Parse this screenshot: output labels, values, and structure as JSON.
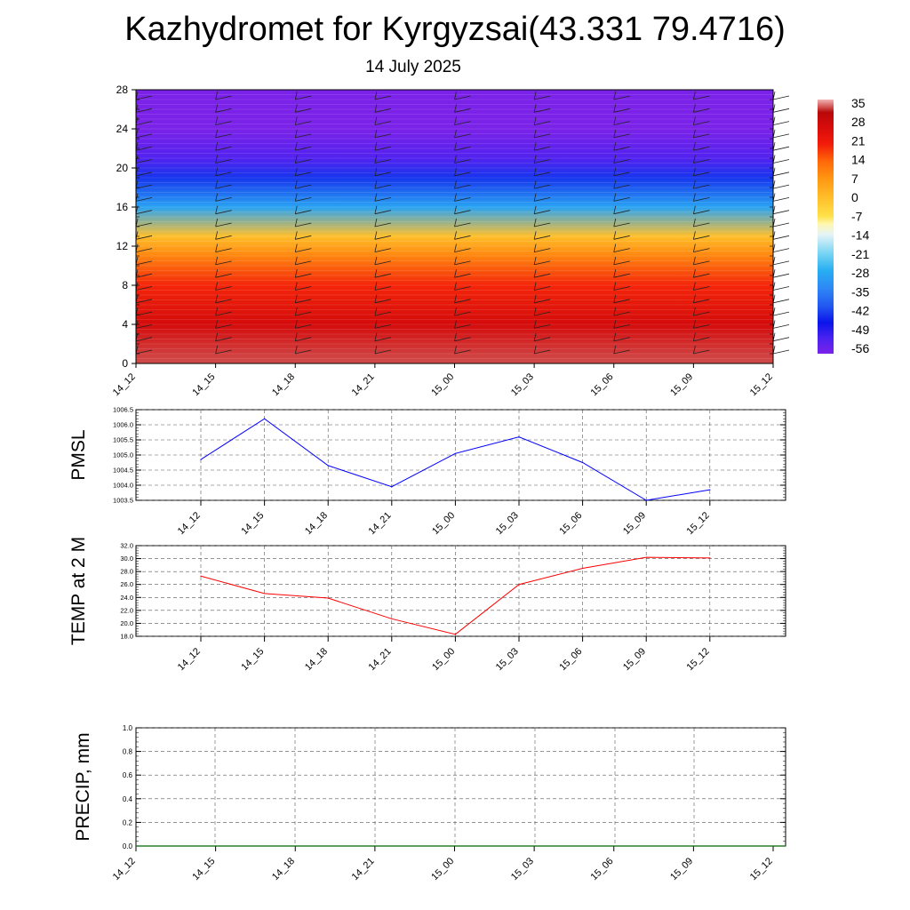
{
  "header": {
    "title": "Kazhydromet for Kyrgyzsai(43.331 79.4716)",
    "date": "14 July 2025"
  },
  "chart_data": [
    {
      "type": "heatmap",
      "title": "",
      "time_labels": [
        "14_12",
        "14_15",
        "14_18",
        "14_21",
        "15_00",
        "15_03",
        "15_06",
        "15_09",
        "15_12"
      ],
      "y_ticks": [
        0,
        4,
        8,
        12,
        16,
        20,
        24,
        28
      ],
      "ylim": [
        0,
        28
      ],
      "colorbar": {
        "labels": [
          "35",
          "28",
          "21",
          "14",
          "7",
          "0",
          "-7",
          "-14",
          "-21",
          "-28",
          "-35",
          "-42",
          "-49",
          "-56"
        ],
        "range": [
          -60,
          38
        ]
      },
      "temperature_by_level": [
        {
          "y": 0,
          "t": 35
        },
        {
          "y": 4,
          "t": 28
        },
        {
          "y": 8,
          "t": 20
        },
        {
          "y": 11,
          "t": 10
        },
        {
          "y": 13,
          "t": 0
        },
        {
          "y": 16,
          "t": -30
        },
        {
          "y": 19,
          "t": -45
        },
        {
          "y": 21,
          "t": -55
        },
        {
          "y": 24,
          "t": -60
        },
        {
          "y": 28,
          "t": -60
        }
      ],
      "wind_barbs": true
    },
    {
      "type": "line",
      "ylabel": "PMSL",
      "x": [
        "14_12",
        "14_15",
        "14_18",
        "14_21",
        "15_00",
        "15_03",
        "15_06",
        "15_09",
        "15_12"
      ],
      "series": [
        {
          "values": [
            1004.85,
            1006.2,
            1004.65,
            1003.95,
            1005.05,
            1005.6,
            1004.75,
            1003.5,
            1003.85
          ],
          "color": "#0000ff"
        }
      ],
      "ylim": [
        1003.5,
        1006.5
      ],
      "y_ticks": [
        "1003.5",
        "1004.0",
        "1004.5",
        "1005.0",
        "1005.5",
        "1006.0",
        "1006.5"
      ],
      "grid": true
    },
    {
      "type": "line",
      "ylabel": "TEMP at 2 M",
      "x": [
        "14_12",
        "14_15",
        "14_18",
        "14_21",
        "15_00",
        "15_03",
        "15_06",
        "15_09",
        "15_12"
      ],
      "series": [
        {
          "values": [
            27.3,
            24.6,
            23.9,
            20.7,
            18.3,
            26.0,
            28.5,
            30.2,
            30.1
          ],
          "color": "#ff0000"
        }
      ],
      "ylim": [
        18.0,
        32.0
      ],
      "y_ticks": [
        "18.0",
        "20.0",
        "22.0",
        "24.0",
        "26.0",
        "28.0",
        "30.0",
        "32.0"
      ],
      "grid": true
    },
    {
      "type": "line",
      "ylabel": "PRECIP, mm",
      "x": [
        "14_12",
        "14_15",
        "14_18",
        "14_21",
        "15_00",
        "15_03",
        "15_06",
        "15_09",
        "15_12"
      ],
      "series": [
        {
          "values": [
            0,
            0,
            0,
            0,
            0,
            0,
            0,
            0,
            0
          ],
          "color": "#006400"
        }
      ],
      "ylim": [
        0,
        1.0
      ],
      "y_ticks": [
        "0.0",
        "0.2",
        "0.4",
        "0.6",
        "0.8",
        "1.0"
      ],
      "grid": true
    }
  ]
}
